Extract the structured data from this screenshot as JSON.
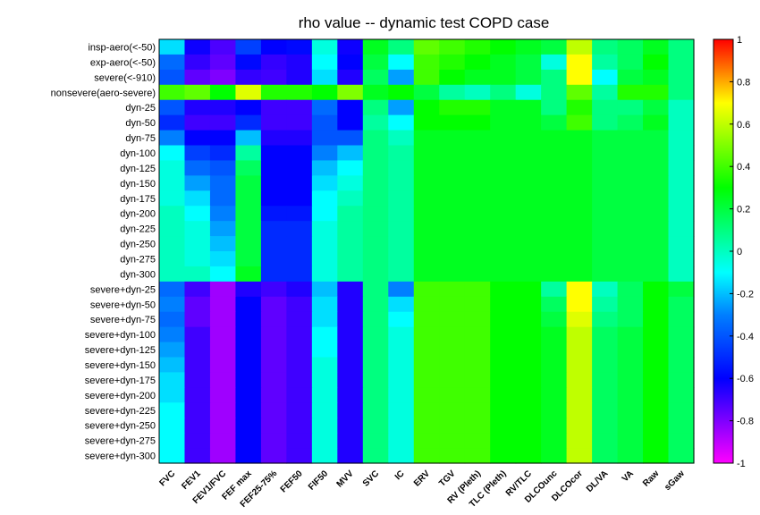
{
  "chart_data": {
    "type": "heatmap",
    "title": "rho value -- dynamic test COPD case",
    "xlabel": "",
    "ylabel": "",
    "colormap": "hsv",
    "colorbar": {
      "range": [
        -1,
        1
      ],
      "ticks": [
        "1",
        "0.8",
        "0.6",
        "0.4",
        "0.2",
        "0",
        "-0.2",
        "-0.4",
        "-0.6",
        "-0.8",
        "-1"
      ]
    },
    "columns": [
      "FVC",
      "FEV1",
      "FEV1/FVC",
      "FEF max",
      "FEF25-75%",
      "FEF50",
      "FIF50",
      "MVV",
      "SVC",
      "IC",
      "ERV",
      "TGV",
      "RV (Pleth)",
      "TLC (Pleth)",
      "RV/TLC",
      "DLCOunc",
      "DLCOcor",
      "DL/VA",
      "VA",
      "Raw",
      "sGaw"
    ],
    "rows": [
      "insp-aero(<-50)",
      "exp-aero(<-50)",
      "severe(<-910)",
      "nonsevere(aero-severe)",
      "dyn-25",
      "dyn-50",
      "dyn-75",
      "dyn-100",
      "dyn-125",
      "dyn-150",
      "dyn-175",
      "dyn-200",
      "dyn-225",
      "dyn-250",
      "dyn-275",
      "dyn-300",
      "severe+dyn-25",
      "severe+dyn-50",
      "severe+dyn-75",
      "severe+dyn-100",
      "severe+dyn-125",
      "severe+dyn-150",
      "severe+dyn-175",
      "severe+dyn-200",
      "severe+dyn-225",
      "severe+dyn-250",
      "severe+dyn-275",
      "severe+dyn-300"
    ],
    "values": [
      [
        -0.15,
        -0.62,
        -0.72,
        -0.45,
        -0.6,
        -0.58,
        -0.05,
        -0.62,
        0.25,
        0.1,
        0.45,
        0.4,
        0.35,
        0.3,
        0.25,
        0.2,
        0.6,
        0.1,
        0.15,
        0.25,
        0.1
      ],
      [
        -0.35,
        -0.68,
        -0.75,
        -0.58,
        -0.68,
        -0.65,
        -0.1,
        -0.6,
        0.2,
        -0.1,
        0.4,
        0.35,
        0.3,
        0.25,
        0.2,
        -0.05,
        0.7,
        0.05,
        0.15,
        0.3,
        0.1
      ],
      [
        -0.4,
        -0.75,
        -0.8,
        -0.68,
        -0.7,
        -0.65,
        -0.15,
        -0.65,
        0.15,
        -0.25,
        0.4,
        0.3,
        0.25,
        0.25,
        0.2,
        0.1,
        0.7,
        -0.1,
        0.2,
        0.25,
        0.1
      ],
      [
        0.4,
        0.45,
        0.3,
        0.65,
        0.35,
        0.35,
        0.3,
        0.5,
        0.25,
        0.3,
        0.2,
        0.05,
        0.0,
        0.1,
        -0.05,
        0.1,
        0.45,
        0.05,
        0.35,
        0.35,
        0.1
      ],
      [
        -0.4,
        -0.65,
        -0.65,
        -0.6,
        -0.7,
        -0.7,
        -0.35,
        -0.6,
        0.1,
        -0.25,
        0.3,
        0.35,
        0.35,
        0.25,
        0.25,
        0.1,
        0.35,
        0.1,
        0.1,
        0.2,
        0.0
      ],
      [
        -0.5,
        -0.7,
        -0.7,
        -0.5,
        -0.7,
        -0.7,
        -0.4,
        -0.6,
        0.05,
        -0.1,
        0.3,
        0.3,
        0.3,
        0.25,
        0.25,
        0.2,
        0.4,
        0.1,
        0.15,
        0.25,
        0.0
      ],
      [
        -0.3,
        -0.6,
        -0.6,
        -0.2,
        -0.65,
        -0.65,
        -0.4,
        -0.4,
        0.1,
        0.0,
        0.25,
        0.25,
        0.25,
        0.25,
        0.25,
        0.25,
        0.25,
        0.2,
        0.2,
        0.2,
        0.0
      ],
      [
        -0.1,
        -0.45,
        -0.5,
        0.05,
        -0.6,
        -0.6,
        -0.3,
        -0.2,
        0.1,
        0.05,
        0.25,
        0.25,
        0.25,
        0.25,
        0.25,
        0.25,
        0.25,
        0.2,
        0.2,
        0.2,
        0.0
      ],
      [
        -0.05,
        -0.35,
        -0.4,
        0.15,
        -0.6,
        -0.6,
        -0.2,
        -0.1,
        0.1,
        0.05,
        0.25,
        0.25,
        0.25,
        0.25,
        0.25,
        0.25,
        0.25,
        0.2,
        0.2,
        0.2,
        0.0
      ],
      [
        -0.05,
        -0.25,
        -0.35,
        0.2,
        -0.6,
        -0.6,
        -0.15,
        -0.05,
        0.1,
        0.05,
        0.25,
        0.25,
        0.25,
        0.25,
        0.25,
        0.25,
        0.25,
        0.2,
        0.2,
        0.2,
        0.0
      ],
      [
        -0.05,
        -0.15,
        -0.35,
        0.2,
        -0.6,
        -0.6,
        -0.1,
        0.0,
        0.1,
        0.05,
        0.25,
        0.25,
        0.25,
        0.25,
        0.25,
        0.25,
        0.25,
        0.2,
        0.2,
        0.2,
        0.0
      ],
      [
        0.0,
        -0.1,
        -0.3,
        0.2,
        -0.55,
        -0.55,
        -0.1,
        0.05,
        0.1,
        0.05,
        0.25,
        0.25,
        0.25,
        0.25,
        0.25,
        0.25,
        0.25,
        0.2,
        0.2,
        0.2,
        0.0
      ],
      [
        0.0,
        -0.05,
        -0.25,
        0.2,
        -0.5,
        -0.5,
        -0.05,
        0.05,
        0.1,
        0.05,
        0.25,
        0.25,
        0.25,
        0.25,
        0.25,
        0.25,
        0.25,
        0.2,
        0.2,
        0.2,
        0.0
      ],
      [
        0.0,
        -0.05,
        -0.2,
        0.2,
        -0.5,
        -0.5,
        -0.05,
        0.05,
        0.1,
        0.05,
        0.25,
        0.25,
        0.25,
        0.25,
        0.25,
        0.25,
        0.25,
        0.2,
        0.2,
        0.2,
        0.0
      ],
      [
        0.0,
        -0.05,
        -0.15,
        0.2,
        -0.5,
        -0.5,
        -0.05,
        0.05,
        0.1,
        0.05,
        0.25,
        0.25,
        0.25,
        0.25,
        0.25,
        0.25,
        0.25,
        0.2,
        0.2,
        0.2,
        0.0
      ],
      [
        0.0,
        0.0,
        -0.1,
        0.25,
        -0.5,
        -0.5,
        -0.05,
        0.05,
        0.1,
        0.05,
        0.25,
        0.25,
        0.25,
        0.25,
        0.25,
        0.25,
        0.25,
        0.2,
        0.2,
        0.2,
        0.0
      ],
      [
        -0.35,
        -0.7,
        -0.85,
        -0.65,
        -0.7,
        -0.65,
        -0.2,
        -0.65,
        0.1,
        -0.3,
        0.4,
        0.4,
        0.4,
        0.3,
        0.3,
        0.05,
        0.7,
        0.0,
        0.15,
        0.3,
        0.2
      ],
      [
        -0.3,
        -0.75,
        -0.85,
        -0.6,
        -0.75,
        -0.7,
        -0.15,
        -0.65,
        0.1,
        -0.15,
        0.4,
        0.4,
        0.4,
        0.3,
        0.3,
        0.15,
        0.7,
        0.05,
        0.15,
        0.3,
        0.15
      ],
      [
        -0.35,
        -0.75,
        -0.85,
        -0.6,
        -0.75,
        -0.7,
        -0.15,
        -0.65,
        0.1,
        -0.1,
        0.4,
        0.4,
        0.4,
        0.3,
        0.3,
        0.2,
        0.65,
        0.1,
        0.15,
        0.3,
        0.15
      ],
      [
        -0.3,
        -0.7,
        -0.85,
        -0.6,
        -0.75,
        -0.7,
        -0.1,
        -0.65,
        0.1,
        -0.05,
        0.4,
        0.4,
        0.4,
        0.3,
        0.3,
        0.25,
        0.6,
        0.15,
        0.2,
        0.3,
        0.15
      ],
      [
        -0.25,
        -0.7,
        -0.85,
        -0.6,
        -0.75,
        -0.7,
        -0.1,
        -0.65,
        0.1,
        -0.05,
        0.4,
        0.4,
        0.4,
        0.3,
        0.3,
        0.25,
        0.6,
        0.15,
        0.2,
        0.3,
        0.15
      ],
      [
        -0.2,
        -0.7,
        -0.85,
        -0.6,
        -0.75,
        -0.7,
        -0.05,
        -0.65,
        0.1,
        -0.05,
        0.4,
        0.4,
        0.4,
        0.3,
        0.3,
        0.25,
        0.6,
        0.15,
        0.2,
        0.3,
        0.15
      ],
      [
        -0.15,
        -0.7,
        -0.85,
        -0.6,
        -0.75,
        -0.7,
        -0.05,
        -0.65,
        0.1,
        -0.05,
        0.4,
        0.4,
        0.4,
        0.3,
        0.3,
        0.25,
        0.6,
        0.15,
        0.2,
        0.3,
        0.15
      ],
      [
        -0.15,
        -0.7,
        -0.85,
        -0.6,
        -0.75,
        -0.7,
        -0.05,
        -0.65,
        0.1,
        -0.05,
        0.4,
        0.4,
        0.4,
        0.3,
        0.3,
        0.25,
        0.6,
        0.15,
        0.2,
        0.3,
        0.15
      ],
      [
        -0.1,
        -0.7,
        -0.85,
        -0.6,
        -0.75,
        -0.7,
        -0.05,
        -0.65,
        0.1,
        -0.05,
        0.4,
        0.4,
        0.4,
        0.3,
        0.3,
        0.25,
        0.6,
        0.15,
        0.2,
        0.3,
        0.15
      ],
      [
        -0.1,
        -0.7,
        -0.85,
        -0.6,
        -0.75,
        -0.7,
        -0.05,
        -0.65,
        0.1,
        -0.05,
        0.4,
        0.4,
        0.4,
        0.3,
        0.3,
        0.25,
        0.6,
        0.15,
        0.2,
        0.3,
        0.15
      ],
      [
        -0.1,
        -0.7,
        -0.85,
        -0.6,
        -0.75,
        -0.7,
        -0.05,
        -0.65,
        0.1,
        -0.05,
        0.4,
        0.4,
        0.4,
        0.3,
        0.3,
        0.25,
        0.6,
        0.15,
        0.2,
        0.3,
        0.15
      ],
      [
        -0.1,
        -0.7,
        -0.85,
        -0.6,
        -0.75,
        -0.7,
        -0.05,
        -0.65,
        0.1,
        -0.05,
        0.4,
        0.4,
        0.4,
        0.3,
        0.3,
        0.25,
        0.6,
        0.15,
        0.2,
        0.3,
        0.15
      ]
    ]
  }
}
